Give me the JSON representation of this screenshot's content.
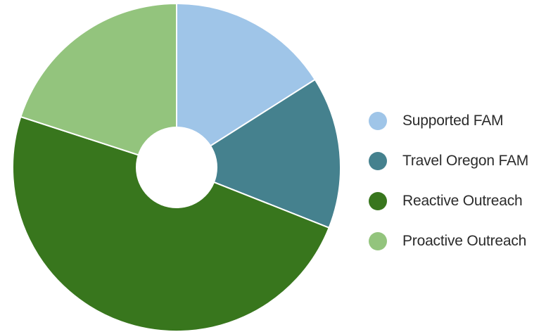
{
  "chart_data": {
    "type": "pie",
    "donut": true,
    "title": "",
    "legend_position": "right",
    "slices": [
      {
        "label": "Supported FAM",
        "value": 16,
        "color": "#9fc5e8"
      },
      {
        "label": "Travel Oregon FAM",
        "value": 15,
        "color": "#45818e"
      },
      {
        "label": "Reactive Outreach",
        "value": 49,
        "color": "#38761d"
      },
      {
        "label": "Proactive Outreach",
        "value": 20,
        "color": "#93c47d"
      }
    ]
  }
}
